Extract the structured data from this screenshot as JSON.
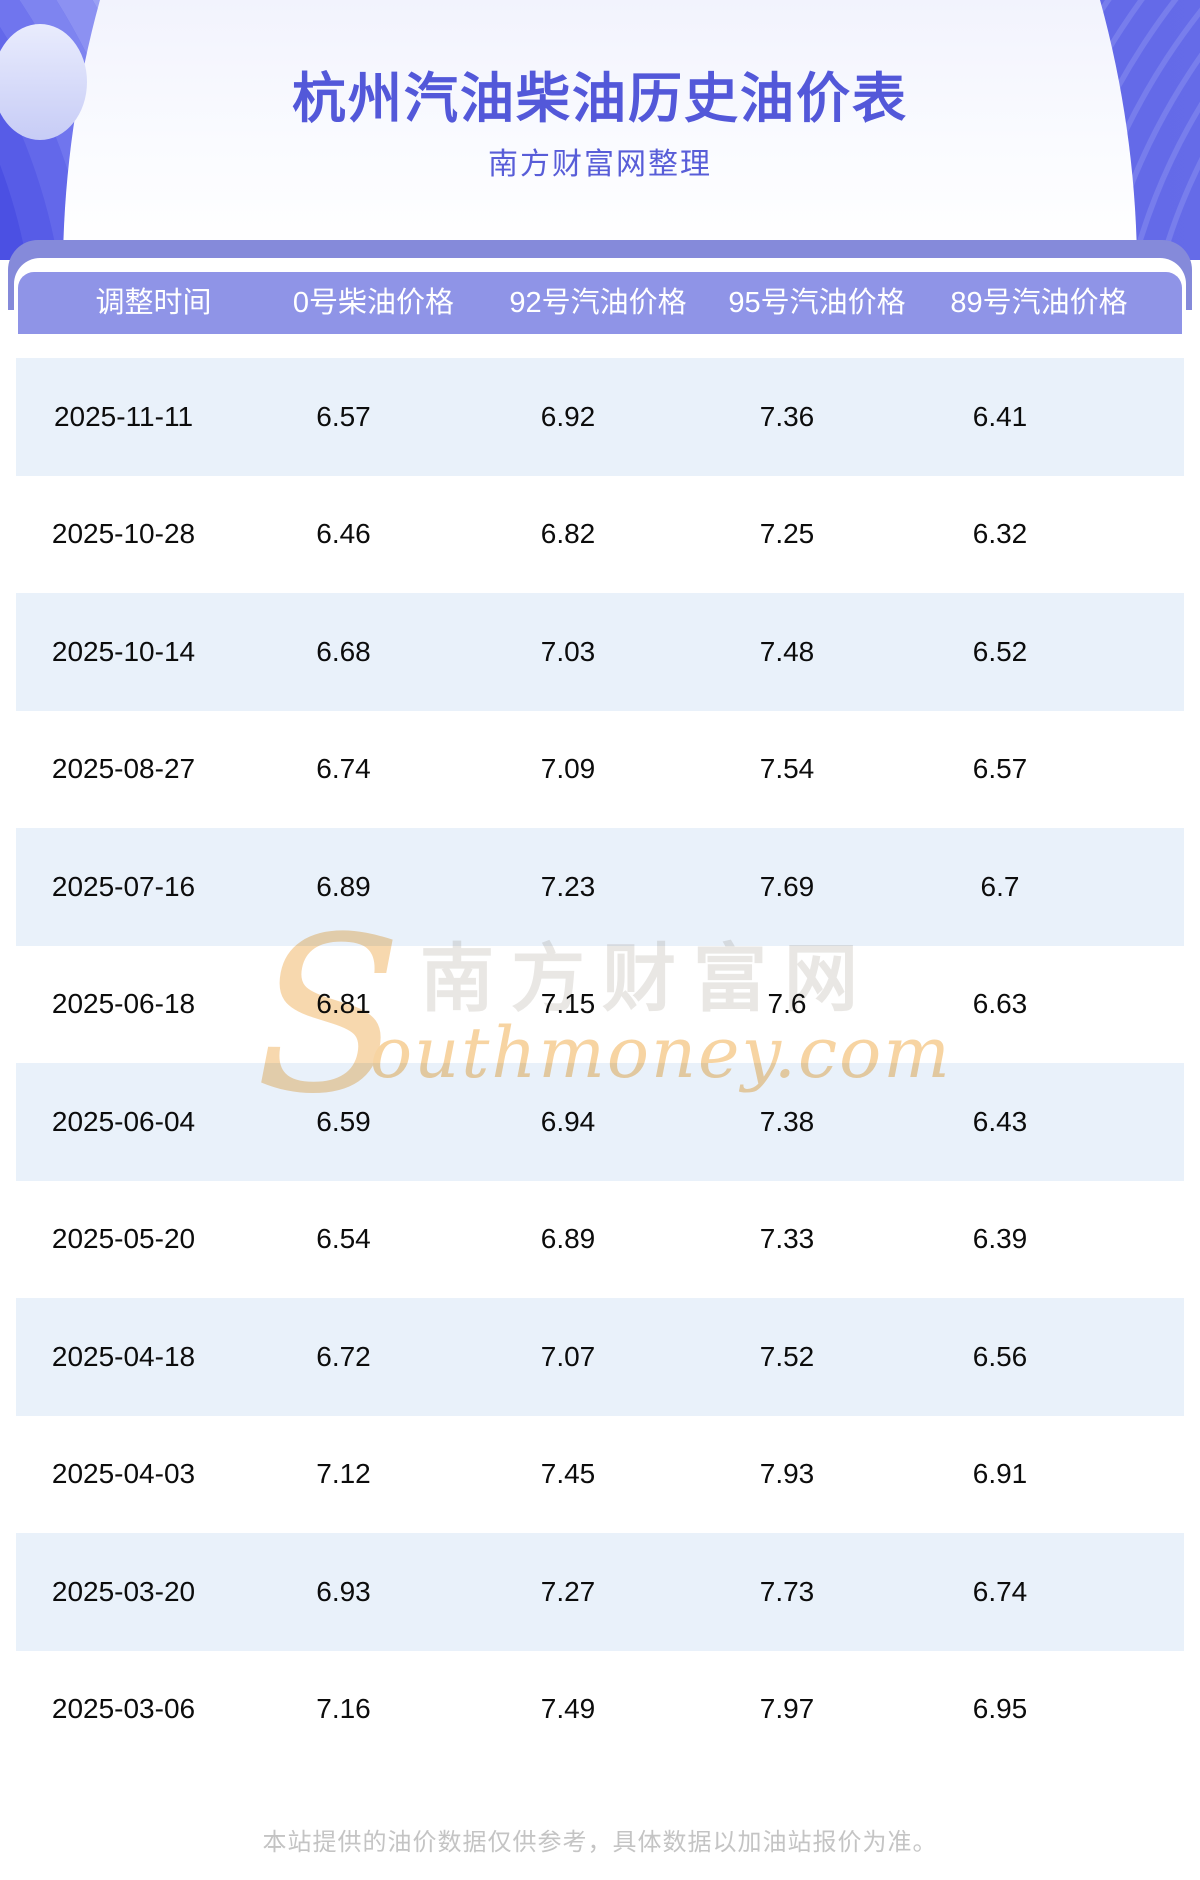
{
  "page": {
    "title": "杭州汽油柴油历史油价表",
    "subtitle": "南方财富网整理",
    "footer_note": "本站提供的油价数据仅供参考，具体数据以加油站报价为准。"
  },
  "watermark": {
    "s_glyph": "S",
    "cjk_text": "南方财富网",
    "latin_text": "outhmoney.com"
  },
  "colors": {
    "title_text": "#5358d9",
    "subtitle_text": "#585dd8",
    "hero_background": "#5e64e7",
    "band_purple": "#858ada",
    "header_row_purple": "#8f94e7",
    "header_text": "#ffffff",
    "row_alt_blue": "#e9f1fa",
    "row_text": "#0c0c0c",
    "watermark_orange": "#f7d4a2",
    "watermark_gray": "#e9e7e4",
    "footer_gray": "#c4c4c4"
  },
  "table": {
    "columns": [
      "调整时间",
      "0号柴油价格",
      "92号汽油价格",
      "95号汽油价格",
      "89号汽油价格"
    ],
    "rows": [
      [
        "2025-11-11",
        "6.57",
        "6.92",
        "7.36",
        "6.41"
      ],
      [
        "2025-10-28",
        "6.46",
        "6.82",
        "7.25",
        "6.32"
      ],
      [
        "2025-10-14",
        "6.68",
        "7.03",
        "7.48",
        "6.52"
      ],
      [
        "2025-08-27",
        "6.74",
        "7.09",
        "7.54",
        "6.57"
      ],
      [
        "2025-07-16",
        "6.89",
        "7.23",
        "7.69",
        "6.7"
      ],
      [
        "2025-06-18",
        "6.81",
        "7.15",
        "7.6",
        "6.63"
      ],
      [
        "2025-06-04",
        "6.59",
        "6.94",
        "7.38",
        "6.43"
      ],
      [
        "2025-05-20",
        "6.54",
        "6.89",
        "7.33",
        "6.39"
      ],
      [
        "2025-04-18",
        "6.72",
        "7.07",
        "7.52",
        "6.56"
      ],
      [
        "2025-04-03",
        "7.12",
        "7.45",
        "7.93",
        "6.91"
      ],
      [
        "2025-03-20",
        "6.93",
        "7.27",
        "7.73",
        "6.74"
      ],
      [
        "2025-03-06",
        "7.16",
        "7.49",
        "7.97",
        "6.95"
      ]
    ]
  }
}
